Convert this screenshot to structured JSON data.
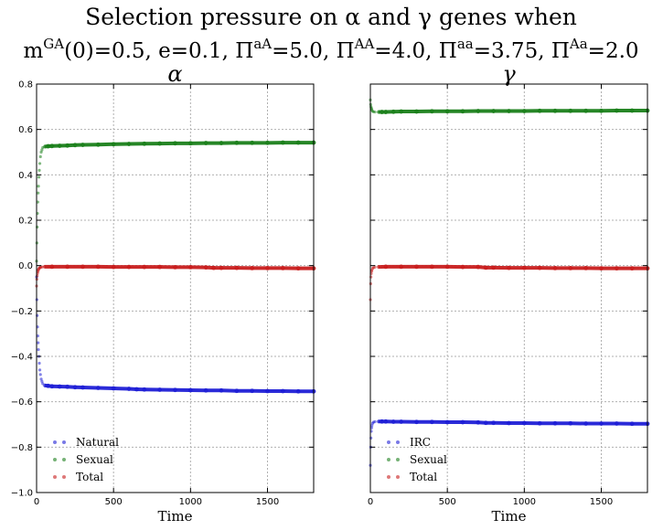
{
  "chart_data": {
    "title": "Selection pressure on α and γ genes when",
    "subtitle": "m^GA(0)=0.5, e=0.1, Π^aA=5.0, Π^AA=4.0, Π^aa=3.75, Π^Aa=2.0",
    "subtitle_parts": [
      {
        "base": "m",
        "sup": "GA"
      },
      {
        "base": "(0)=0.5, e=0.1, Π",
        "sup": "aA"
      },
      {
        "base": "=5.0, Π",
        "sup": "AA"
      },
      {
        "base": "=4.0, Π",
        "sup": "aa"
      },
      {
        "base": "=3.75, Π",
        "sup": "Aa"
      },
      {
        "base": "=2.0",
        "sup": ""
      }
    ],
    "ylim": [
      -1.0,
      0.8
    ],
    "xlim": [
      0,
      1800
    ],
    "yticks": [
      -1.0,
      -0.8,
      -0.6,
      -0.4,
      -0.2,
      0.0,
      0.2,
      0.4,
      0.6,
      0.8
    ],
    "ytick_labels": [
      "−1.0",
      "−0.8",
      "−0.6",
      "−0.4",
      "−0.2",
      "0.0",
      "0.2",
      "0.4",
      "0.6",
      "0.8"
    ],
    "xticks": [
      0,
      500,
      1000,
      1500
    ],
    "xtick_labels": [
      "0",
      "500",
      "1000",
      "1500"
    ],
    "grid": true,
    "charts": [
      {
        "type": "scatter",
        "title": "α",
        "xlabel": "Time",
        "legend_position": "lower-left",
        "show_yticks": true,
        "series": [
          {
            "name": "Natural",
            "color": "#1f1fd6",
            "points": [
              [
                0,
                -0.05
              ],
              [
                2,
                -0.15
              ],
              [
                4,
                -0.22
              ],
              [
                6,
                -0.27
              ],
              [
                8,
                -0.31
              ],
              [
                10,
                -0.34
              ],
              [
                12,
                -0.37
              ],
              [
                15,
                -0.4
              ],
              [
                18,
                -0.43
              ],
              [
                21,
                -0.46
              ],
              [
                25,
                -0.48
              ],
              [
                30,
                -0.5
              ],
              [
                35,
                -0.51
              ],
              [
                40,
                -0.52
              ],
              [
                50,
                -0.528
              ],
              [
                75,
                -0.53
              ],
              [
                100,
                -0.532
              ],
              [
                150,
                -0.533
              ],
              [
                200,
                -0.534
              ],
              [
                250,
                -0.536
              ],
              [
                300,
                -0.537
              ],
              [
                400,
                -0.539
              ],
              [
                500,
                -0.541
              ],
              [
                600,
                -0.543
              ],
              [
                650,
                -0.545
              ],
              [
                700,
                -0.546
              ],
              [
                800,
                -0.547
              ],
              [
                900,
                -0.548
              ],
              [
                1000,
                -0.549
              ],
              [
                1100,
                -0.55
              ],
              [
                1200,
                -0.55
              ],
              [
                1300,
                -0.552
              ],
              [
                1400,
                -0.552
              ],
              [
                1500,
                -0.553
              ],
              [
                1600,
                -0.553
              ],
              [
                1700,
                -0.554
              ],
              [
                1800,
                -0.554
              ]
            ]
          },
          {
            "name": "Sexual",
            "color": "#1a7f1a",
            "points": [
              [
                0,
                0.02
              ],
              [
                2,
                0.1
              ],
              [
                4,
                0.17
              ],
              [
                6,
                0.23
              ],
              [
                8,
                0.28
              ],
              [
                10,
                0.32
              ],
              [
                12,
                0.35
              ],
              [
                15,
                0.39
              ],
              [
                18,
                0.42
              ],
              [
                21,
                0.45
              ],
              [
                25,
                0.48
              ],
              [
                30,
                0.5
              ],
              [
                35,
                0.51
              ],
              [
                40,
                0.52
              ],
              [
                50,
                0.524
              ],
              [
                75,
                0.526
              ],
              [
                100,
                0.527
              ],
              [
                150,
                0.528
              ],
              [
                200,
                0.529
              ],
              [
                250,
                0.531
              ],
              [
                300,
                0.532
              ],
              [
                400,
                0.533
              ],
              [
                500,
                0.535
              ],
              [
                600,
                0.536
              ],
              [
                700,
                0.537
              ],
              [
                800,
                0.538
              ],
              [
                900,
                0.539
              ],
              [
                1000,
                0.539
              ],
              [
                1100,
                0.54
              ],
              [
                1200,
                0.54
              ],
              [
                1300,
                0.541
              ],
              [
                1400,
                0.541
              ],
              [
                1500,
                0.541
              ],
              [
                1600,
                0.542
              ],
              [
                1700,
                0.542
              ],
              [
                1800,
                0.542
              ]
            ]
          },
          {
            "name": "Total",
            "color": "#c81e1e",
            "points": [
              [
                0,
                -0.09
              ],
              [
                2,
                -0.06
              ],
              [
                4,
                -0.045
              ],
              [
                6,
                -0.035
              ],
              [
                8,
                -0.028
              ],
              [
                10,
                -0.022
              ],
              [
                12,
                -0.018
              ],
              [
                15,
                -0.014
              ],
              [
                18,
                -0.011
              ],
              [
                21,
                -0.009
              ],
              [
                25,
                -0.008
              ],
              [
                30,
                -0.007
              ],
              [
                40,
                -0.006
              ],
              [
                50,
                -0.005
              ],
              [
                100,
                -0.005
              ],
              [
                200,
                -0.005
              ],
              [
                300,
                -0.005
              ],
              [
                400,
                -0.005
              ],
              [
                500,
                -0.006
              ],
              [
                600,
                -0.006
              ],
              [
                700,
                -0.006
              ],
              [
                800,
                -0.006
              ],
              [
                900,
                -0.007
              ],
              [
                1000,
                -0.007
              ],
              [
                1100,
                -0.008
              ],
              [
                1150,
                -0.01
              ],
              [
                1200,
                -0.01
              ],
              [
                1300,
                -0.01
              ],
              [
                1400,
                -0.011
              ],
              [
                1500,
                -0.011
              ],
              [
                1600,
                -0.011
              ],
              [
                1700,
                -0.012
              ],
              [
                1800,
                -0.012
              ]
            ]
          }
        ]
      },
      {
        "type": "scatter",
        "title": "γ",
        "xlabel": "Time",
        "legend_position": "lower-left",
        "show_yticks": false,
        "series": [
          {
            "name": "IRC",
            "color": "#1f1fd6",
            "points": [
              [
                0,
                -0.88
              ],
              [
                2,
                -0.8
              ],
              [
                4,
                -0.76
              ],
              [
                6,
                -0.73
              ],
              [
                8,
                -0.715
              ],
              [
                10,
                -0.705
              ],
              [
                15,
                -0.695
              ],
              [
                20,
                -0.69
              ],
              [
                30,
                -0.688
              ],
              [
                50,
                -0.687
              ],
              [
                75,
                -0.687
              ],
              [
                100,
                -0.687
              ],
              [
                150,
                -0.688
              ],
              [
                200,
                -0.688
              ],
              [
                300,
                -0.689
              ],
              [
                400,
                -0.689
              ],
              [
                500,
                -0.69
              ],
              [
                600,
                -0.69
              ],
              [
                700,
                -0.691
              ],
              [
                750,
                -0.693
              ],
              [
                800,
                -0.693
              ],
              [
                900,
                -0.694
              ],
              [
                1000,
                -0.694
              ],
              [
                1100,
                -0.695
              ],
              [
                1200,
                -0.695
              ],
              [
                1300,
                -0.695
              ],
              [
                1400,
                -0.696
              ],
              [
                1500,
                -0.696
              ],
              [
                1600,
                -0.696
              ],
              [
                1700,
                -0.697
              ],
              [
                1800,
                -0.697
              ]
            ]
          },
          {
            "name": "Sexual",
            "color": "#1a7f1a",
            "points": [
              [
                0,
                0.73
              ],
              [
                2,
                0.71
              ],
              [
                4,
                0.7
              ],
              [
                6,
                0.695
              ],
              [
                8,
                0.69
              ],
              [
                10,
                0.685
              ],
              [
                15,
                0.68
              ],
              [
                20,
                0.678
              ],
              [
                30,
                0.677
              ],
              [
                50,
                0.677
              ],
              [
                75,
                0.677
              ],
              [
                100,
                0.677
              ],
              [
                150,
                0.678
              ],
              [
                200,
                0.679
              ],
              [
                300,
                0.679
              ],
              [
                400,
                0.68
              ],
              [
                500,
                0.68
              ],
              [
                600,
                0.68
              ],
              [
                700,
                0.681
              ],
              [
                800,
                0.681
              ],
              [
                900,
                0.681
              ],
              [
                1000,
                0.681
              ],
              [
                1100,
                0.682
              ],
              [
                1200,
                0.682
              ],
              [
                1300,
                0.682
              ],
              [
                1400,
                0.682
              ],
              [
                1500,
                0.682
              ],
              [
                1600,
                0.683
              ],
              [
                1700,
                0.683
              ],
              [
                1800,
                0.683
              ]
            ]
          },
          {
            "name": "Total",
            "color": "#c81e1e",
            "points": [
              [
                0,
                -0.15
              ],
              [
                2,
                -0.08
              ],
              [
                4,
                -0.05
              ],
              [
                6,
                -0.035
              ],
              [
                8,
                -0.025
              ],
              [
                10,
                -0.02
              ],
              [
                15,
                -0.012
              ],
              [
                20,
                -0.009
              ],
              [
                30,
                -0.007
              ],
              [
                50,
                -0.006
              ],
              [
                100,
                -0.005
              ],
              [
                200,
                -0.005
              ],
              [
                300,
                -0.005
              ],
              [
                400,
                -0.005
              ],
              [
                500,
                -0.005
              ],
              [
                600,
                -0.006
              ],
              [
                700,
                -0.006
              ],
              [
                750,
                -0.009
              ],
              [
                800,
                -0.009
              ],
              [
                900,
                -0.01
              ],
              [
                1000,
                -0.01
              ],
              [
                1100,
                -0.01
              ],
              [
                1200,
                -0.011
              ],
              [
                1300,
                -0.011
              ],
              [
                1400,
                -0.011
              ],
              [
                1500,
                -0.012
              ],
              [
                1600,
                -0.012
              ],
              [
                1700,
                -0.012
              ],
              [
                1800,
                -0.012
              ]
            ]
          }
        ]
      }
    ]
  }
}
